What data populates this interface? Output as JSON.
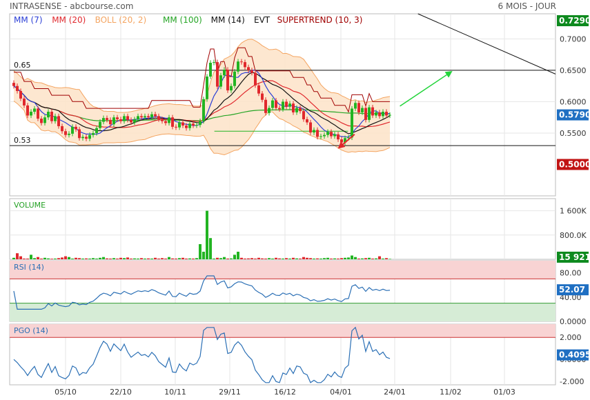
{
  "header": {
    "title": "INTRASENSE - abcbourse.com",
    "period": "6 MOIS - JOUR"
  },
  "colors": {
    "up": "#22b422",
    "down": "#e0282d",
    "mm7": "#2b3fd6",
    "mm20": "#e0282d",
    "boll": "#f4a460",
    "bollFill": "#fde3c8",
    "mm100": "#25a525",
    "mm14": "#111111",
    "supertrend": "#a00000",
    "rsi": "#2a6fb5",
    "pgo": "#2a6fb5",
    "badgeBlue": "#1f6fc2",
    "badgeGreen": "#0d8a1e",
    "badgeRed": "#c11414"
  },
  "chart_data": [
    {
      "type": "candlestick",
      "name": "price",
      "legend": [
        {
          "label": "MM (7)",
          "color": "#2b3fd6"
        },
        {
          "label": "MM (20)",
          "color": "#e0282d"
        },
        {
          "label": "BOLL (20, 2)",
          "color": "#f4a460"
        },
        {
          "label": "MM (100)",
          "color": "#25a525"
        },
        {
          "label": "MM (14)",
          "color": "#111111"
        },
        {
          "label": "EVT",
          "color": "#111111"
        },
        {
          "label": "SUPERTREND (10, 3)",
          "color": "#a00000"
        }
      ],
      "ylim": [
        0.45,
        0.74
      ],
      "yticks": [
        "0.7000",
        "0.6500",
        "0.6000",
        "0.5500"
      ],
      "ytick_values": [
        0.7,
        0.65,
        0.6,
        0.55
      ],
      "hlines": [
        {
          "label": "0.65",
          "value": 0.65
        },
        {
          "label": "0.53",
          "value": 0.53
        }
      ],
      "badges": [
        {
          "value": "0.7290",
          "y": 0.729,
          "color": "#0d8a1e"
        },
        {
          "value": "0.5790",
          "y": 0.579,
          "color": "#1f6fc2"
        },
        {
          "value": "0.5000",
          "y": 0.5,
          "color": "#c11414"
        }
      ],
      "trendline": [
        [
          0.748,
          0.74
        ],
        [
          1.0,
          0.644
        ]
      ],
      "arrow": {
        "from": [
          0.715,
          0.593
        ],
        "to": [
          0.808,
          0.647
        ]
      },
      "support_line": {
        "from": [
          0.375,
          0.553
        ],
        "to": [
          0.62,
          0.553
        ]
      },
      "red_arrow": {
        "from": [
          0.632,
          0.548
        ],
        "to": [
          0.605,
          0.528
        ]
      },
      "closes": [
        0.625,
        0.617,
        0.605,
        0.594,
        0.578,
        0.584,
        0.589,
        0.573,
        0.566,
        0.575,
        0.584,
        0.569,
        0.577,
        0.561,
        0.553,
        0.547,
        0.549,
        0.56,
        0.556,
        0.542,
        0.544,
        0.541,
        0.547,
        0.55,
        0.558,
        0.568,
        0.574,
        0.571,
        0.564,
        0.575,
        0.572,
        0.569,
        0.577,
        0.571,
        0.567,
        0.572,
        0.577,
        0.575,
        0.577,
        0.575,
        0.58,
        0.577,
        0.572,
        0.569,
        0.566,
        0.575,
        0.56,
        0.559,
        0.567,
        0.562,
        0.558,
        0.565,
        0.562,
        0.563,
        0.569,
        0.604,
        0.64,
        0.662,
        0.663,
        0.624,
        0.642,
        0.651,
        0.618,
        0.625,
        0.648,
        0.664,
        0.663,
        0.655,
        0.65,
        0.646,
        0.626,
        0.613,
        0.603,
        0.582,
        0.59,
        0.602,
        0.59,
        0.588,
        0.6,
        0.592,
        0.597,
        0.583,
        0.59,
        0.585,
        0.572,
        0.567,
        0.551,
        0.555,
        0.544,
        0.545,
        0.547,
        0.552,
        0.545,
        0.548,
        0.54,
        0.535,
        0.542,
        0.543,
        0.589,
        0.598,
        0.583,
        0.59,
        0.571,
        0.591,
        0.578,
        0.583,
        0.577,
        0.584,
        0.578,
        0.579
      ],
      "volumes": [
        0.1,
        0.4,
        0.2,
        0.05,
        0.05,
        0.3,
        0.08,
        0.15,
        0.05,
        0.1,
        0.06,
        0.04,
        0.05,
        0.08,
        0.12,
        0.2,
        0.15,
        0.05,
        0.1,
        0.08,
        0.05,
        0.06,
        0.05,
        0.08,
        0.05,
        0.1,
        0.15,
        0.06,
        0.05,
        0.08,
        0.05,
        0.1,
        0.08,
        0.12,
        0.05,
        0.06,
        0.05,
        0.08,
        0.05,
        0.06,
        0.05,
        0.1,
        0.05,
        0.08,
        0.05,
        0.15,
        0.06,
        0.05,
        0.08,
        0.1,
        0.05,
        0.06,
        0.05,
        0.08,
        1.0,
        0.5,
        3.2,
        1.4,
        0.05,
        0.1,
        0.08,
        0.15,
        0.05,
        0.06,
        0.3,
        0.5,
        0.1,
        0.05,
        0.06,
        0.08,
        0.05,
        0.1,
        0.06,
        0.05,
        0.08,
        0.05,
        0.1,
        0.06,
        0.05,
        0.08,
        0.05,
        0.1,
        0.06,
        0.05,
        0.15,
        0.1,
        0.08,
        0.05,
        0.06,
        0.05,
        0.08,
        0.1,
        0.05,
        0.06,
        0.05,
        0.08,
        0.1,
        0.12,
        0.25,
        0.15,
        0.05,
        0.06,
        0.08,
        0.1,
        0.05,
        0.06,
        0.2,
        0.05,
        0.08,
        0.03
      ]
    },
    {
      "type": "bar",
      "name": "volume",
      "title": "VOLUME",
      "ylim": [
        0,
        2000000
      ],
      "yticks": [
        "1 600K",
        "800.0K"
      ],
      "ytick_values": [
        1600000,
        800000
      ],
      "badge": {
        "value": "15 921",
        "y": 70000,
        "color": "#0d8a1e"
      }
    },
    {
      "type": "line",
      "name": "rsi",
      "title": "RSI (14)",
      "ylim": [
        0,
        100
      ],
      "yticks": [
        "80.00",
        "40.00",
        "0.0000"
      ],
      "ytick_values": [
        80,
        40,
        0
      ],
      "overbought": 70,
      "oversold": 30,
      "badge": {
        "value": "52.07",
        "y": 52.07,
        "color": "#1f6fc2"
      }
    },
    {
      "type": "line",
      "name": "pgo",
      "title": "PGO (14)",
      "ylim": [
        -2.3,
        3.2
      ],
      "yticks": [
        "2.000",
        "0.0000",
        "-2.000"
      ],
      "ytick_values": [
        2,
        0,
        -2
      ],
      "upper": 2,
      "lower": -2,
      "badge": {
        "value": "0.4095",
        "y": 0.4095,
        "color": "#1f6fc2"
      }
    }
  ],
  "xaxis": {
    "labels": [
      "05/10",
      "22/10",
      "10/11",
      "29/11",
      "16/12",
      "04/01",
      "24/01",
      "11/02",
      "01/03"
    ],
    "positions": [
      95,
      175,
      254,
      333,
      413,
      494,
      572,
      653,
      731
    ]
  }
}
